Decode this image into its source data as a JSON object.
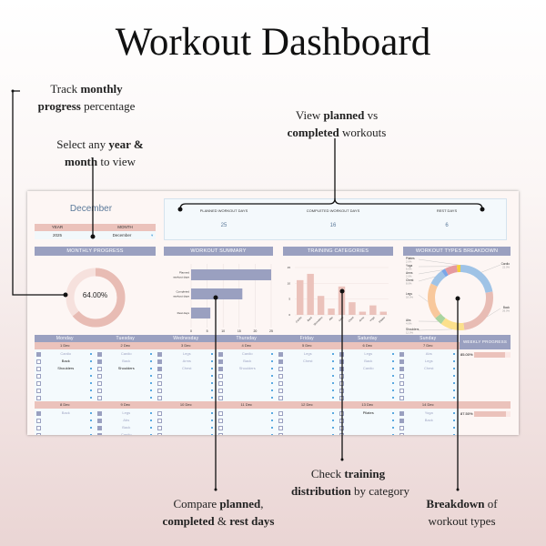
{
  "title": "Workout Dashboard",
  "annotations": {
    "monthly": [
      "Track ",
      "monthly",
      "progress",
      " percentage"
    ],
    "select": [
      "Select any ",
      "year &",
      "month",
      " to view"
    ],
    "planned": [
      "View ",
      "planned",
      " vs",
      "completed",
      " workouts"
    ],
    "compare": [
      "Compare ",
      "planned",
      ",",
      "completed",
      " & ",
      "rest days"
    ],
    "training": [
      "Check ",
      "training",
      "distribution",
      " by category"
    ],
    "breakdown": [
      "Breakdown",
      " of",
      "workout types"
    ]
  },
  "dashboard": {
    "month_title": "December",
    "year_label": "YEAR",
    "month_label": "MONTH",
    "year_value": "2025",
    "month_value": "December",
    "kpis": [
      {
        "label": "PLANNED WORKOUT DAYS",
        "value": "25"
      },
      {
        "label": "COMPLETED WORKOUT DAYS",
        "value": "16"
      },
      {
        "label": "REST DAYS",
        "value": "6"
      }
    ],
    "sections": {
      "progress": "MONTHLY PROGRESS",
      "summary": "WORKOUT SUMMARY",
      "categories": "TRAINING CATEGORIES",
      "breakdown": "WORKOUT TYPES BREAKDOWN",
      "weekly": "WEEKLY PROGRESS"
    },
    "monthly_progress_pct": 64.0,
    "monthly_progress_label": "64.00%",
    "colors": {
      "header": "#9aa0c0",
      "pink": "#ebc2bb",
      "donut_fill": "#e8bcb4",
      "donut_track": "#f6e1dd",
      "bar_blue": "#9aa0c0",
      "bar_pink": "#ebc2bb"
    }
  },
  "chart_data": [
    {
      "type": "bar",
      "orientation": "horizontal",
      "categories": [
        "Planned workout days",
        "Completed workout days",
        "Rest days"
      ],
      "values": [
        25,
        16,
        6
      ],
      "xlim": [
        0,
        25
      ],
      "xticks": [
        "0",
        "5",
        "10",
        "15",
        "20",
        "25"
      ],
      "grid": true
    },
    {
      "type": "bar",
      "categories": [
        "Cardio",
        "Back",
        "Shoulders",
        "Abs",
        "Legs",
        "Chest",
        "Arms",
        "Yoga",
        "Pilates"
      ],
      "values": [
        11,
        13,
        6,
        2,
        9,
        4,
        1,
        3,
        1
      ],
      "ylim": [
        0,
        15
      ],
      "yticks": [
        "0",
        "5",
        "10",
        "15"
      ],
      "grid": true
    },
    {
      "type": "pie",
      "donut": true,
      "slices": [
        {
          "label": "Cardio",
          "pct": "22.0%",
          "value": 22,
          "color": "#9fc3e6"
        },
        {
          "label": "Back",
          "pct": "26.0%",
          "value": 26,
          "color": "#e8bcb4"
        },
        {
          "label": "Shoulders",
          "pct": "12.0%",
          "value": 12,
          "color": "#fbe08c"
        },
        {
          "label": "Abs",
          "pct": "4.0%",
          "value": 4,
          "color": "#a9d4a0"
        },
        {
          "label": "Legs",
          "pct": "18.0%",
          "value": 18,
          "color": "#f8c89c"
        },
        {
          "label": "Chest",
          "pct": "8.0%",
          "value": 8,
          "color": "#9fc3e6"
        },
        {
          "label": "Arms",
          "pct": "2.0%",
          "value": 2,
          "color": "#7aa6e8"
        },
        {
          "label": "Yoga",
          "pct": "6.0%",
          "value": 6,
          "color": "#e59a9f"
        },
        {
          "label": "Pilates",
          "pct": "2.0%",
          "value": 2,
          "color": "#f5cf3c"
        }
      ]
    }
  ],
  "calendar": {
    "days": [
      "Monday",
      "Tuesday",
      "Wednesday",
      "Thursday",
      "Friday",
      "Saturday",
      "Sunday"
    ],
    "weeks": [
      {
        "dates": [
          "1 Dec",
          "2 Dec",
          "3 Dec",
          "4 Dec",
          "5 Dec",
          "6 Dec",
          "7 Dec"
        ],
        "progress": "85.00%",
        "progress_value": 85,
        "tasks": [
          [
            [
              "Cardio",
              true
            ],
            [
              "Back",
              false
            ],
            [
              "Shoulders",
              false
            ]
          ],
          [
            [
              "Cardio",
              true
            ],
            [
              "Back",
              true
            ],
            [
              "Shoulders",
              false
            ]
          ],
          [
            [
              "Legs",
              true
            ],
            [
              "Arms",
              true
            ],
            [
              "Chest",
              true
            ]
          ],
          [
            [
              "Cardio",
              true
            ],
            [
              "Back",
              true
            ],
            [
              "Shoulders",
              true
            ]
          ],
          [
            [
              "Legs",
              true
            ],
            [
              "Chest",
              true
            ]
          ],
          [
            [
              "Legs",
              true
            ],
            [
              "Back",
              true
            ],
            [
              "Cardio",
              true
            ]
          ],
          [
            [
              "Abs",
              true
            ],
            [
              "Legs",
              true
            ],
            [
              "Chest",
              true
            ]
          ]
        ]
      },
      {
        "dates": [
          "8 Dec",
          "9 Dec",
          "10 Dec",
          "11 Dec",
          "12 Dec",
          "13 Dec",
          "14 Dec"
        ],
        "progress": "87.50%",
        "progress_value": 87.5,
        "tasks": [
          [
            [
              "Back",
              true
            ]
          ],
          [
            [
              "Legs",
              true
            ],
            [
              "Abs",
              true
            ],
            [
              "Back",
              true
            ],
            [
              "Cardio",
              true
            ]
          ],
          [],
          [],
          [],
          [
            [
              "Pilates",
              false
            ]
          ],
          [
            [
              "Yoga",
              true
            ],
            [
              "Back",
              true
            ]
          ]
        ]
      }
    ]
  }
}
